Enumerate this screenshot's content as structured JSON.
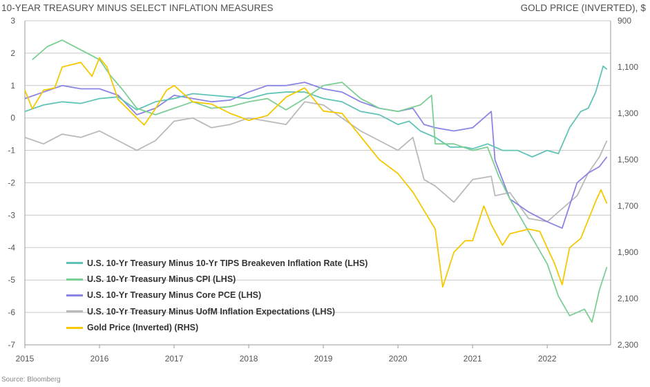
{
  "header": {
    "left_title": "10-YEAR TREASURY MINUS SELECT INFLATION MEASURES",
    "right_title": "GOLD PRICE (INVERTED), $"
  },
  "source": "Source: Bloomberg",
  "chart_data": {
    "type": "line",
    "title": "10-YEAR TREASURY MINUS SELECT INFLATION MEASURES",
    "x_ticks": [
      "2015",
      "2016",
      "2017",
      "2018",
      "2019",
      "2020",
      "2021",
      "2022"
    ],
    "left_axis": {
      "range": [
        -7,
        3
      ],
      "ticks": [
        "3",
        "2",
        "1",
        "0",
        "-1",
        "-2",
        "-3",
        "-4",
        "-5",
        "-6",
        "-7"
      ]
    },
    "right_axis": {
      "label": "GOLD PRICE (INVERTED), $",
      "inverted": true,
      "range": [
        900,
        2300
      ],
      "ticks": [
        "900",
        "1,100",
        "1,300",
        "1,500",
        "1,700",
        "1,900",
        "2,100",
        "2,300"
      ]
    },
    "grid": "horizontal",
    "legend_position": "bottom-left",
    "series": [
      {
        "name": "U.S. 10-Yr Treasury Minus 10-Yr TIPS Breakeven Inflation Rate (LHS)",
        "axis": "left",
        "color": "#5ec4b6",
        "points": [
          [
            2015.0,
            0.2
          ],
          [
            2015.25,
            0.4
          ],
          [
            2015.5,
            0.5
          ],
          [
            2015.75,
            0.45
          ],
          [
            2016.0,
            0.6
          ],
          [
            2016.25,
            0.65
          ],
          [
            2016.5,
            0.25
          ],
          [
            2016.75,
            0.5
          ],
          [
            2017.0,
            0.6
          ],
          [
            2017.25,
            0.75
          ],
          [
            2017.5,
            0.7
          ],
          [
            2017.75,
            0.65
          ],
          [
            2018.0,
            0.6
          ],
          [
            2018.25,
            0.75
          ],
          [
            2018.5,
            0.8
          ],
          [
            2018.75,
            0.8
          ],
          [
            2019.0,
            0.6
          ],
          [
            2019.25,
            0.5
          ],
          [
            2019.5,
            0.2
          ],
          [
            2019.75,
            0.1
          ],
          [
            2020.0,
            -0.2
          ],
          [
            2020.15,
            -0.1
          ],
          [
            2020.3,
            -0.4
          ],
          [
            2020.5,
            -0.6
          ],
          [
            2020.7,
            -0.9
          ],
          [
            2020.9,
            -0.9
          ],
          [
            2021.0,
            -0.95
          ],
          [
            2021.2,
            -0.8
          ],
          [
            2021.4,
            -1.0
          ],
          [
            2021.6,
            -1.0
          ],
          [
            2021.8,
            -1.2
          ],
          [
            2022.0,
            -1.0
          ],
          [
            2022.15,
            -1.1
          ],
          [
            2022.3,
            -0.3
          ],
          [
            2022.45,
            0.2
          ],
          [
            2022.55,
            0.3
          ],
          [
            2022.65,
            0.8
          ],
          [
            2022.75,
            1.6
          ],
          [
            2022.8,
            1.5
          ]
        ]
      },
      {
        "name": "U.S. 10-Yr Treasury Minus CPI (LHS)",
        "axis": "left",
        "color": "#7ccf94",
        "points": [
          [
            2015.1,
            1.8
          ],
          [
            2015.3,
            2.2
          ],
          [
            2015.5,
            2.4
          ],
          [
            2015.75,
            2.1
          ],
          [
            2016.0,
            1.8
          ],
          [
            2016.15,
            1.3
          ],
          [
            2016.3,
            0.9
          ],
          [
            2016.5,
            0.3
          ],
          [
            2016.75,
            0.1
          ],
          [
            2017.0,
            0.3
          ],
          [
            2017.25,
            0.5
          ],
          [
            2017.5,
            0.3
          ],
          [
            2017.75,
            0.35
          ],
          [
            2018.0,
            0.5
          ],
          [
            2018.25,
            0.6
          ],
          [
            2018.5,
            0.25
          ],
          [
            2018.75,
            0.6
          ],
          [
            2019.0,
            1.0
          ],
          [
            2019.25,
            1.1
          ],
          [
            2019.5,
            0.6
          ],
          [
            2019.75,
            0.3
          ],
          [
            2020.0,
            0.2
          ],
          [
            2020.3,
            0.4
          ],
          [
            2020.45,
            0.7
          ],
          [
            2020.5,
            -0.8
          ],
          [
            2020.75,
            -0.8
          ],
          [
            2021.0,
            -1.0
          ],
          [
            2021.2,
            -0.9
          ],
          [
            2021.35,
            -1.8
          ],
          [
            2021.5,
            -2.5
          ],
          [
            2021.75,
            -3.5
          ],
          [
            2022.0,
            -4.5
          ],
          [
            2022.15,
            -5.5
          ],
          [
            2022.3,
            -6.1
          ],
          [
            2022.5,
            -5.9
          ],
          [
            2022.6,
            -6.3
          ],
          [
            2022.7,
            -5.3
          ],
          [
            2022.8,
            -4.6
          ]
        ]
      },
      {
        "name": "U.S. 10-Yr Treasury Minus Core PCE (LHS)",
        "axis": "left",
        "color": "#8a84e6",
        "points": [
          [
            2015.0,
            0.6
          ],
          [
            2015.25,
            0.8
          ],
          [
            2015.5,
            1.0
          ],
          [
            2015.75,
            0.9
          ],
          [
            2016.0,
            0.9
          ],
          [
            2016.25,
            0.7
          ],
          [
            2016.5,
            0.1
          ],
          [
            2016.75,
            0.3
          ],
          [
            2017.0,
            0.7
          ],
          [
            2017.25,
            0.6
          ],
          [
            2017.5,
            0.5
          ],
          [
            2017.75,
            0.55
          ],
          [
            2018.0,
            0.8
          ],
          [
            2018.25,
            1.0
          ],
          [
            2018.5,
            1.0
          ],
          [
            2018.75,
            1.1
          ],
          [
            2019.0,
            0.9
          ],
          [
            2019.25,
            0.8
          ],
          [
            2019.5,
            0.5
          ],
          [
            2019.75,
            0.3
          ],
          [
            2020.0,
            0.2
          ],
          [
            2020.2,
            0.3
          ],
          [
            2020.35,
            -0.2
          ],
          [
            2020.5,
            -0.3
          ],
          [
            2020.75,
            -0.4
          ],
          [
            2021.0,
            -0.3
          ],
          [
            2021.25,
            0.2
          ],
          [
            2021.3,
            -1.3
          ],
          [
            2021.5,
            -2.5
          ],
          [
            2021.75,
            -2.9
          ],
          [
            2022.0,
            -3.2
          ],
          [
            2022.2,
            -3.4
          ],
          [
            2022.4,
            -2.0
          ],
          [
            2022.55,
            -1.7
          ],
          [
            2022.7,
            -1.5
          ],
          [
            2022.8,
            -1.2
          ]
        ]
      },
      {
        "name": "U.S. 10-Yr Treasury Minus UofM Inflation Expectations (LHS)",
        "axis": "left",
        "color": "#b9b9b9",
        "points": [
          [
            2015.0,
            -0.6
          ],
          [
            2015.25,
            -0.8
          ],
          [
            2015.5,
            -0.5
          ],
          [
            2015.75,
            -0.6
          ],
          [
            2016.0,
            -0.4
          ],
          [
            2016.25,
            -0.7
          ],
          [
            2016.5,
            -1.0
          ],
          [
            2016.75,
            -0.7
          ],
          [
            2017.0,
            -0.1
          ],
          [
            2017.25,
            0.0
          ],
          [
            2017.5,
            -0.3
          ],
          [
            2017.75,
            -0.2
          ],
          [
            2018.0,
            0.0
          ],
          [
            2018.25,
            -0.1
          ],
          [
            2018.5,
            -0.2
          ],
          [
            2018.75,
            0.5
          ],
          [
            2019.0,
            0.4
          ],
          [
            2019.25,
            0.0
          ],
          [
            2019.5,
            -0.4
          ],
          [
            2019.75,
            -0.7
          ],
          [
            2020.0,
            -1.0
          ],
          [
            2020.2,
            -0.6
          ],
          [
            2020.35,
            -1.9
          ],
          [
            2020.5,
            -2.1
          ],
          [
            2020.75,
            -2.6
          ],
          [
            2021.0,
            -1.9
          ],
          [
            2021.25,
            -1.8
          ],
          [
            2021.3,
            -2.4
          ],
          [
            2021.5,
            -2.3
          ],
          [
            2021.75,
            -3.1
          ],
          [
            2022.0,
            -3.2
          ],
          [
            2022.2,
            -2.8
          ],
          [
            2022.4,
            -2.4
          ],
          [
            2022.55,
            -1.7
          ],
          [
            2022.7,
            -1.2
          ],
          [
            2022.8,
            -0.7
          ]
        ]
      },
      {
        "name": "Gold Price (Inverted) (RHS)",
        "axis": "right",
        "color": "#f5c800",
        "points": [
          [
            2015.0,
            1200
          ],
          [
            2015.1,
            1280
          ],
          [
            2015.25,
            1200
          ],
          [
            2015.4,
            1190
          ],
          [
            2015.5,
            1100
          ],
          [
            2015.75,
            1080
          ],
          [
            2015.9,
            1140
          ],
          [
            2016.0,
            1060
          ],
          [
            2016.1,
            1100
          ],
          [
            2016.25,
            1240
          ],
          [
            2016.5,
            1320
          ],
          [
            2016.6,
            1350
          ],
          [
            2016.75,
            1280
          ],
          [
            2016.9,
            1200
          ],
          [
            2017.0,
            1180
          ],
          [
            2017.25,
            1250
          ],
          [
            2017.5,
            1260
          ],
          [
            2017.75,
            1300
          ],
          [
            2018.0,
            1330
          ],
          [
            2018.25,
            1310
          ],
          [
            2018.5,
            1230
          ],
          [
            2018.75,
            1190
          ],
          [
            2019.0,
            1290
          ],
          [
            2019.25,
            1300
          ],
          [
            2019.5,
            1400
          ],
          [
            2019.75,
            1500
          ],
          [
            2020.0,
            1560
          ],
          [
            2020.2,
            1640
          ],
          [
            2020.35,
            1720
          ],
          [
            2020.5,
            1800
          ],
          [
            2020.6,
            2050
          ],
          [
            2020.75,
            1900
          ],
          [
            2020.9,
            1850
          ],
          [
            2021.0,
            1850
          ],
          [
            2021.15,
            1700
          ],
          [
            2021.25,
            1780
          ],
          [
            2021.4,
            1870
          ],
          [
            2021.5,
            1820
          ],
          [
            2021.75,
            1800
          ],
          [
            2021.9,
            1810
          ],
          [
            2022.1,
            1950
          ],
          [
            2022.2,
            2040
          ],
          [
            2022.3,
            1880
          ],
          [
            2022.45,
            1840
          ],
          [
            2022.55,
            1760
          ],
          [
            2022.65,
            1680
          ],
          [
            2022.72,
            1630
          ],
          [
            2022.8,
            1690
          ]
        ]
      }
    ]
  }
}
